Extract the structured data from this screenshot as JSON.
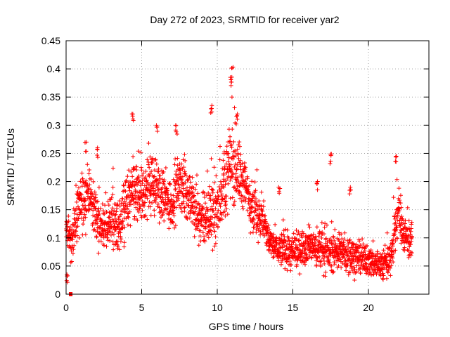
{
  "chart_data": {
    "type": "scatter",
    "title": "Day 272 of 2023, SRMTID for receiver yar2",
    "xlabel": "GPS time / hours",
    "ylabel": "SRMTID / TECUs",
    "xlim": [
      0,
      24
    ],
    "ylim": [
      0,
      0.45
    ],
    "xticks": [
      0,
      5,
      10,
      15,
      20
    ],
    "xtick_labels": [
      "0",
      "5",
      "10",
      "15",
      "20"
    ],
    "yticks": [
      0,
      0.05,
      0.1,
      0.15,
      0.2,
      0.25,
      0.3,
      0.35,
      0.4,
      0.45
    ],
    "ytick_labels": [
      "0",
      "0.05",
      "0.1",
      "0.15",
      "0.2",
      "0.25",
      "0.3",
      "0.35",
      "0.4",
      "0.45"
    ],
    "grid": true,
    "marker": "+",
    "series_color": "#ff0000",
    "trend": {
      "x": [
        0,
        0.3,
        0.6,
        1.0,
        1.5,
        2.0,
        2.5,
        3.0,
        3.5,
        4.0,
        4.5,
        5.0,
        5.5,
        6.0,
        6.5,
        7.0,
        7.5,
        8.0,
        8.5,
        9.0,
        9.5,
        10.0,
        10.5,
        11.0,
        11.5,
        12.0,
        12.5,
        13.0,
        13.5,
        14.0,
        14.5,
        15.0,
        15.5,
        16.0,
        16.5,
        17.0,
        17.5,
        18.0,
        18.5,
        19.0,
        19.5,
        20.0,
        20.5,
        21.0,
        21.5,
        21.8,
        22.0,
        22.3,
        22.6,
        22.9
      ],
      "y": [
        0.12,
        0.09,
        0.13,
        0.16,
        0.18,
        0.14,
        0.11,
        0.13,
        0.12,
        0.16,
        0.18,
        0.17,
        0.2,
        0.19,
        0.17,
        0.16,
        0.2,
        0.18,
        0.15,
        0.13,
        0.14,
        0.15,
        0.2,
        0.24,
        0.21,
        0.18,
        0.15,
        0.13,
        0.09,
        0.08,
        0.08,
        0.07,
        0.08,
        0.09,
        0.08,
        0.08,
        0.07,
        0.08,
        0.07,
        0.07,
        0.06,
        0.06,
        0.055,
        0.05,
        0.07,
        0.12,
        0.15,
        0.11,
        0.1,
        0.1
      ],
      "spread": [
        0.02,
        0.04,
        0.05,
        0.06,
        0.05,
        0.05,
        0.04,
        0.05,
        0.05,
        0.06,
        0.07,
        0.06,
        0.06,
        0.05,
        0.05,
        0.05,
        0.05,
        0.05,
        0.05,
        0.05,
        0.06,
        0.06,
        0.07,
        0.08,
        0.06,
        0.05,
        0.05,
        0.04,
        0.03,
        0.03,
        0.035,
        0.035,
        0.035,
        0.035,
        0.035,
        0.04,
        0.035,
        0.035,
        0.035,
        0.035,
        0.03,
        0.03,
        0.03,
        0.03,
        0.035,
        0.05,
        0.05,
        0.04,
        0.035,
        0.03
      ]
    },
    "peaks": [
      {
        "x": 0.35,
        "y": 0.0
      },
      {
        "x": 0.25,
        "y": 0.0
      },
      {
        "x": 0.05,
        "y": 0.035
      },
      {
        "x": 1.3,
        "y": 0.27
      },
      {
        "x": 2.1,
        "y": 0.26
      },
      {
        "x": 4.4,
        "y": 0.32
      },
      {
        "x": 6.0,
        "y": 0.3
      },
      {
        "x": 7.3,
        "y": 0.3
      },
      {
        "x": 9.6,
        "y": 0.335
      },
      {
        "x": 11.0,
        "y": 0.403
      },
      {
        "x": 10.9,
        "y": 0.385
      },
      {
        "x": 11.3,
        "y": 0.32
      },
      {
        "x": 17.5,
        "y": 0.249
      },
      {
        "x": 21.8,
        "y": 0.245
      },
      {
        "x": 14.1,
        "y": 0.19
      },
      {
        "x": 16.6,
        "y": 0.2
      },
      {
        "x": 18.8,
        "y": 0.19
      }
    ]
  }
}
